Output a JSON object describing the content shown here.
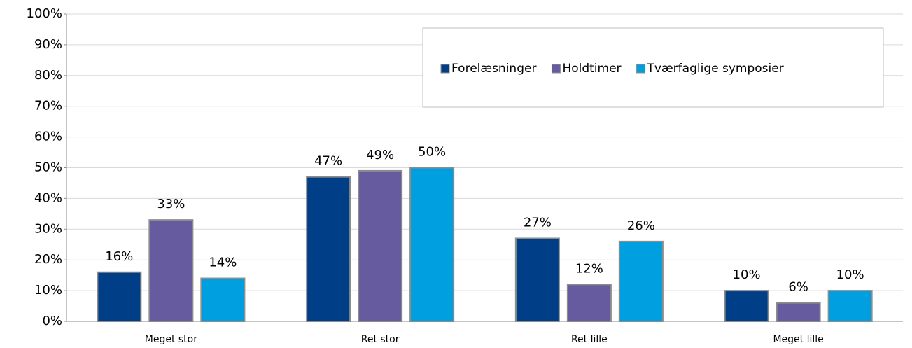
{
  "chart_data": {
    "type": "bar",
    "categories": [
      "Meget stor",
      "Ret stor",
      "Ret lille",
      "Meget lille"
    ],
    "series": [
      {
        "name": "Forelæsninger",
        "color": "#003f87",
        "values": [
          16,
          47,
          27,
          10
        ],
        "value_labels": [
          "16%",
          "47%",
          "27%",
          "10%"
        ]
      },
      {
        "name": "Holdtimer",
        "color": "#675ba0",
        "values": [
          33,
          49,
          12,
          6
        ],
        "value_labels": [
          "33%",
          "49%",
          "12%",
          "6%"
        ]
      },
      {
        "name": "Tværfaglige symposier",
        "color": "#009fe0",
        "values": [
          14,
          50,
          26,
          10
        ],
        "value_labels": [
          "14%",
          "50%",
          "26%",
          "10%"
        ]
      }
    ],
    "ylim": [
      0,
      100
    ],
    "yticks": [
      {
        "value": 0,
        "label": "0%"
      },
      {
        "value": 10,
        "label": "10%"
      },
      {
        "value": 20,
        "label": "20%"
      },
      {
        "value": 30,
        "label": "30%"
      },
      {
        "value": 40,
        "label": "40%"
      },
      {
        "value": 50,
        "label": "50%"
      },
      {
        "value": 60,
        "label": "60%"
      },
      {
        "value": 70,
        "label": "70%"
      },
      {
        "value": 80,
        "label": "80%"
      },
      {
        "value": 90,
        "label": "90%"
      },
      {
        "value": 100,
        "label": "100%"
      }
    ],
    "grid": true,
    "legend": "top-right"
  }
}
